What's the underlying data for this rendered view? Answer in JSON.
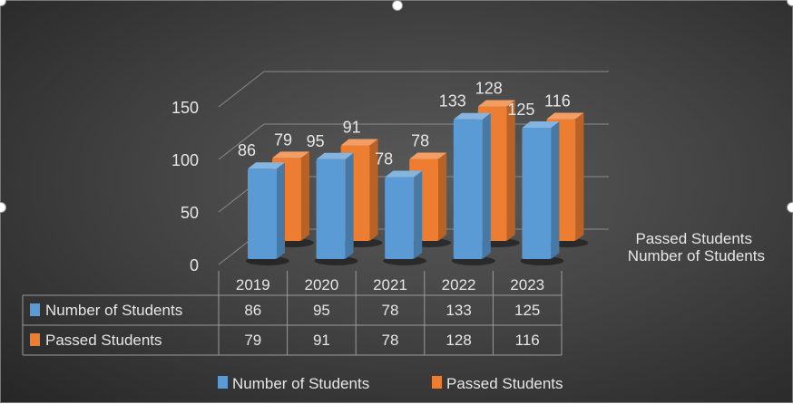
{
  "chart_data": {
    "type": "bar",
    "style": "3d-clustered-column",
    "categories": [
      "2019",
      "2020",
      "2021",
      "2022",
      "2023"
    ],
    "series": [
      {
        "name": "Number of Students",
        "values": [
          86,
          95,
          78,
          133,
          125
        ],
        "color": "#5b9bd5"
      },
      {
        "name": "Passed Students",
        "values": [
          79,
          91,
          78,
          128,
          116
        ],
        "color": "#ed7d31"
      }
    ],
    "yticks": [
      "0",
      "50",
      "100",
      "150"
    ],
    "ylim": [
      0,
      150
    ],
    "grid": true,
    "data_labels": true,
    "data_table": true,
    "legend": "bottom",
    "depth_axis_labels": [
      "Passed Students",
      "Number of Students"
    ]
  }
}
